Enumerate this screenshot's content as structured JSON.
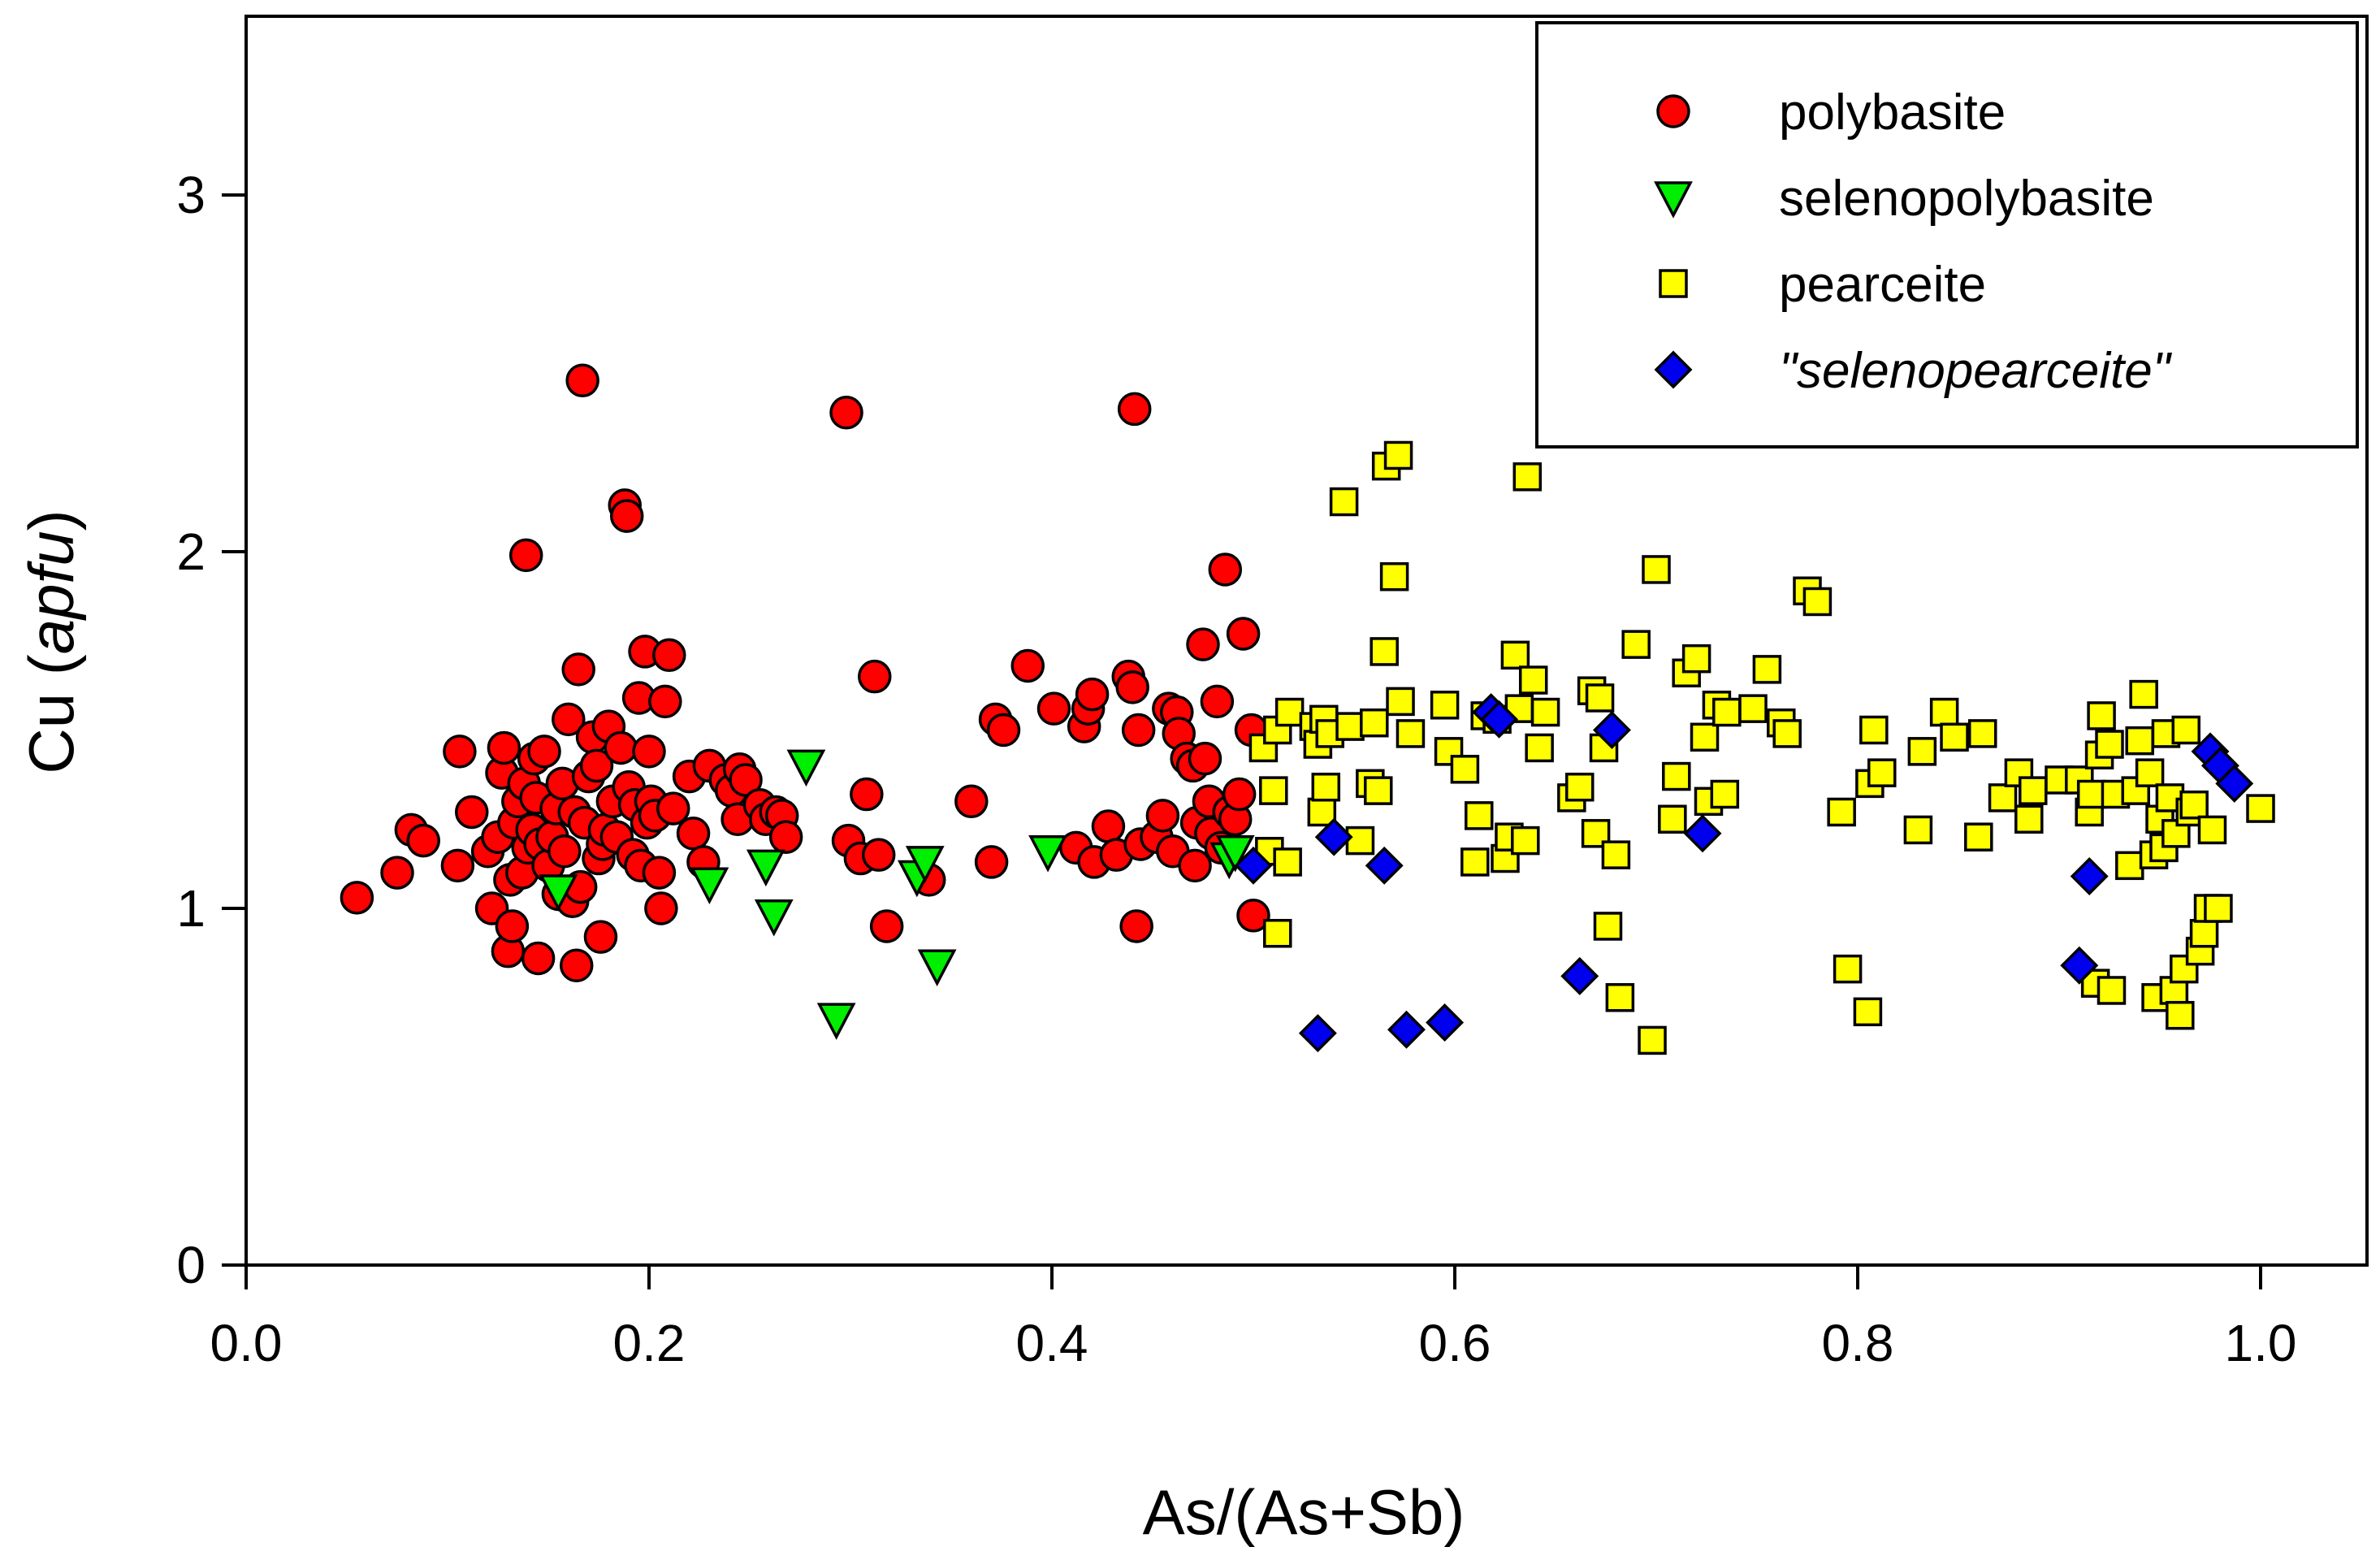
{
  "chart_data": {
    "type": "scatter",
    "title": "",
    "xlabel": "As/(As+Sb)",
    "ylabel_main": "Cu (",
    "ylabel_italic": "apfu",
    "ylabel_end": ")",
    "xlim": [
      0.0,
      1.05
    ],
    "ylim": [
      0,
      3.5
    ],
    "xticks": [
      0.0,
      0.2,
      0.4,
      0.6,
      0.8,
      1.0
    ],
    "xtick_labels": [
      "0.0",
      "0.2",
      "0.4",
      "0.6",
      "0.8",
      "1.0"
    ],
    "yticks": [
      0,
      1,
      2,
      3
    ],
    "ytick_labels": [
      "0",
      "1",
      "2",
      "3"
    ],
    "grid": false,
    "legend_position": "top-right",
    "series": [
      {
        "name": "polybasite",
        "marker": "circle",
        "color": "#ff0000",
        "italic": false,
        "points": [
          [
            0.055,
            1.03
          ],
          [
            0.075,
            1.1
          ],
          [
            0.082,
            1.22
          ],
          [
            0.088,
            1.19
          ],
          [
            0.105,
            1.12
          ],
          [
            0.106,
            1.44
          ],
          [
            0.112,
            1.27
          ],
          [
            0.12,
            1.16
          ],
          [
            0.122,
            1.0
          ],
          [
            0.125,
            1.2
          ],
          [
            0.127,
            1.38
          ],
          [
            0.128,
            1.45
          ],
          [
            0.13,
            0.88
          ],
          [
            0.131,
            1.08
          ],
          [
            0.132,
            0.95
          ],
          [
            0.133,
            1.24
          ],
          [
            0.135,
            1.3
          ],
          [
            0.137,
            1.1
          ],
          [
            0.138,
            1.35
          ],
          [
            0.139,
            1.99
          ],
          [
            0.14,
            1.17
          ],
          [
            0.142,
            1.22
          ],
          [
            0.143,
            1.42
          ],
          [
            0.144,
            1.31
          ],
          [
            0.145,
            0.86
          ],
          [
            0.146,
            1.18
          ],
          [
            0.148,
            1.44
          ],
          [
            0.15,
            1.12
          ],
          [
            0.152,
            1.2
          ],
          [
            0.154,
            1.28
          ],
          [
            0.155,
            1.04
          ],
          [
            0.157,
            1.35
          ],
          [
            0.158,
            1.16
          ],
          [
            0.16,
            1.53
          ],
          [
            0.162,
            1.02
          ],
          [
            0.163,
            1.27
          ],
          [
            0.164,
            0.84
          ],
          [
            0.165,
            1.67
          ],
          [
            0.166,
            1.06
          ],
          [
            0.167,
            2.48
          ],
          [
            0.168,
            1.24
          ],
          [
            0.17,
            1.37
          ],
          [
            0.172,
            1.48
          ],
          [
            0.174,
            1.4
          ],
          [
            0.175,
            1.14
          ],
          [
            0.176,
            0.92
          ],
          [
            0.177,
            1.18
          ],
          [
            0.178,
            1.22
          ],
          [
            0.18,
            1.51
          ],
          [
            0.182,
            1.3
          ],
          [
            0.184,
            1.2
          ],
          [
            0.186,
            1.45
          ],
          [
            0.188,
            2.13
          ],
          [
            0.189,
            2.1
          ],
          [
            0.19,
            1.34
          ],
          [
            0.192,
            1.15
          ],
          [
            0.193,
            1.29
          ],
          [
            0.195,
            1.59
          ],
          [
            0.196,
            1.12
          ],
          [
            0.198,
            1.72
          ],
          [
            0.199,
            1.24
          ],
          [
            0.2,
            1.44
          ],
          [
            0.201,
            1.3
          ],
          [
            0.203,
            1.26
          ],
          [
            0.205,
            1.1
          ],
          [
            0.206,
            1.0
          ],
          [
            0.208,
            1.58
          ],
          [
            0.21,
            1.71
          ],
          [
            0.212,
            1.28
          ],
          [
            0.22,
            1.37
          ],
          [
            0.222,
            1.21
          ],
          [
            0.227,
            1.13
          ],
          [
            0.23,
            1.4
          ],
          [
            0.238,
            1.36
          ],
          [
            0.241,
            1.33
          ],
          [
            0.244,
            1.25
          ],
          [
            0.245,
            1.39
          ],
          [
            0.248,
            1.36
          ],
          [
            0.255,
            1.29
          ],
          [
            0.258,
            1.25
          ],
          [
            0.263,
            1.27
          ],
          [
            0.266,
            1.26
          ],
          [
            0.268,
            1.2
          ],
          [
            0.298,
            2.39
          ],
          [
            0.299,
            1.19
          ],
          [
            0.305,
            1.14
          ],
          [
            0.308,
            1.32
          ],
          [
            0.312,
            1.65
          ],
          [
            0.314,
            1.15
          ],
          [
            0.318,
            0.95
          ],
          [
            0.339,
            1.08
          ],
          [
            0.36,
            1.3
          ],
          [
            0.37,
            1.13
          ],
          [
            0.372,
            1.53
          ],
          [
            0.376,
            1.5
          ],
          [
            0.388,
            1.68
          ],
          [
            0.401,
            1.56
          ],
          [
            0.412,
            1.17
          ],
          [
            0.416,
            1.51
          ],
          [
            0.418,
            1.56
          ],
          [
            0.42,
            1.6
          ],
          [
            0.421,
            1.13
          ],
          [
            0.428,
            1.23
          ],
          [
            0.432,
            1.15
          ],
          [
            0.438,
            1.65
          ],
          [
            0.44,
            1.62
          ],
          [
            0.441,
            2.4
          ],
          [
            0.442,
            0.95
          ],
          [
            0.443,
            1.5
          ],
          [
            0.444,
            1.18
          ],
          [
            0.452,
            1.2
          ],
          [
            0.455,
            1.26
          ],
          [
            0.458,
            1.56
          ],
          [
            0.46,
            1.16
          ],
          [
            0.462,
            1.55
          ],
          [
            0.463,
            1.49
          ],
          [
            0.467,
            1.42
          ],
          [
            0.47,
            1.4
          ],
          [
            0.471,
            1.12
          ],
          [
            0.472,
            1.24
          ],
          [
            0.475,
            1.74
          ],
          [
            0.476,
            1.42
          ],
          [
            0.478,
            1.3
          ],
          [
            0.479,
            1.21
          ],
          [
            0.482,
            1.58
          ],
          [
            0.484,
            1.17
          ],
          [
            0.486,
            1.95
          ],
          [
            0.488,
            1.27
          ],
          [
            0.491,
            1.25
          ],
          [
            0.493,
            1.32
          ],
          [
            0.495,
            1.77
          ],
          [
            0.499,
            1.5
          ],
          [
            0.5,
            0.98
          ]
        ]
      },
      {
        "name": "selenopolybasite",
        "marker": "triangle-down",
        "color": "#00ee00",
        "italic": false,
        "points": [
          [
            0.155,
            1.05
          ],
          [
            0.23,
            1.07
          ],
          [
            0.258,
            1.12
          ],
          [
            0.262,
            0.98
          ],
          [
            0.278,
            1.4
          ],
          [
            0.293,
            0.69
          ],
          [
            0.333,
            1.09
          ],
          [
            0.337,
            1.13
          ],
          [
            0.343,
            0.84
          ],
          [
            0.398,
            1.16
          ],
          [
            0.488,
            1.14
          ],
          [
            0.491,
            1.16
          ]
        ]
      },
      {
        "name": "pearceite",
        "marker": "square",
        "color": "#ffff00",
        "italic": false,
        "points": [
          [
            0.505,
            1.45
          ],
          [
            0.508,
            1.16
          ],
          [
            0.51,
            1.33
          ],
          [
            0.512,
            0.93
          ],
          [
            0.512,
            1.5
          ],
          [
            0.517,
            1.13
          ],
          [
            0.518,
            1.55
          ],
          [
            0.53,
            1.51
          ],
          [
            0.532,
            1.46
          ],
          [
            0.534,
            1.27
          ],
          [
            0.535,
            1.53
          ],
          [
            0.536,
            1.34
          ],
          [
            0.538,
            1.49
          ],
          [
            0.545,
            2.14
          ],
          [
            0.548,
            1.51
          ],
          [
            0.553,
            1.19
          ],
          [
            0.558,
            1.35
          ],
          [
            0.56,
            1.52
          ],
          [
            0.562,
            1.33
          ],
          [
            0.565,
            1.72
          ],
          [
            0.566,
            2.24
          ],
          [
            0.57,
            1.93
          ],
          [
            0.572,
            2.27
          ],
          [
            0.573,
            1.58
          ],
          [
            0.578,
            1.49
          ],
          [
            0.595,
            1.57
          ],
          [
            0.597,
            1.44
          ],
          [
            0.605,
            1.39
          ],
          [
            0.61,
            1.13
          ],
          [
            0.612,
            1.26
          ],
          [
            0.615,
            1.54
          ],
          [
            0.621,
            1.53
          ],
          [
            0.625,
            1.14
          ],
          [
            0.627,
            1.2
          ],
          [
            0.63,
            1.71
          ],
          [
            0.632,
            1.56
          ],
          [
            0.635,
            1.19
          ],
          [
            0.636,
            2.21
          ],
          [
            0.639,
            1.64
          ],
          [
            0.642,
            1.45
          ],
          [
            0.645,
            1.55
          ],
          [
            0.658,
            1.31
          ],
          [
            0.662,
            1.34
          ],
          [
            0.668,
            1.61
          ],
          [
            0.67,
            1.21
          ],
          [
            0.672,
            1.59
          ],
          [
            0.674,
            1.45
          ],
          [
            0.676,
            0.95
          ],
          [
            0.68,
            1.15
          ],
          [
            0.682,
            0.75
          ],
          [
            0.69,
            1.74
          ],
          [
            0.698,
            0.63
          ],
          [
            0.7,
            1.95
          ],
          [
            0.708,
            1.25
          ],
          [
            0.71,
            1.37
          ],
          [
            0.715,
            1.66
          ],
          [
            0.72,
            1.7
          ],
          [
            0.724,
            1.48
          ],
          [
            0.726,
            1.3
          ],
          [
            0.73,
            1.57
          ],
          [
            0.734,
            1.32
          ],
          [
            0.735,
            1.55
          ],
          [
            0.748,
            1.56
          ],
          [
            0.755,
            1.67
          ],
          [
            0.762,
            1.52
          ],
          [
            0.765,
            1.49
          ],
          [
            0.775,
            1.89
          ],
          [
            0.78,
            1.86
          ],
          [
            0.792,
            1.27
          ],
          [
            0.795,
            0.83
          ],
          [
            0.805,
            0.71
          ],
          [
            0.806,
            1.35
          ],
          [
            0.808,
            1.5
          ],
          [
            0.812,
            1.38
          ],
          [
            0.83,
            1.22
          ],
          [
            0.832,
            1.44
          ],
          [
            0.843,
            1.55
          ],
          [
            0.848,
            1.48
          ],
          [
            0.86,
            1.2
          ],
          [
            0.862,
            1.49
          ],
          [
            0.872,
            1.31
          ],
          [
            0.88,
            1.38
          ],
          [
            0.885,
            1.25
          ],
          [
            0.887,
            1.33
          ],
          [
            0.9,
            1.36
          ],
          [
            0.91,
            1.36
          ],
          [
            0.915,
            1.27
          ],
          [
            0.916,
            1.32
          ],
          [
            0.918,
            0.79
          ],
          [
            0.92,
            1.43
          ],
          [
            0.921,
            1.54
          ],
          [
            0.925,
            1.46
          ],
          [
            0.926,
            0.77
          ],
          [
            0.928,
            1.32
          ],
          [
            0.935,
            1.12
          ],
          [
            0.938,
            1.33
          ],
          [
            0.94,
            1.47
          ],
          [
            0.942,
            1.6
          ],
          [
            0.945,
            1.38
          ],
          [
            0.947,
            1.15
          ],
          [
            0.948,
            0.75
          ],
          [
            0.95,
            1.25
          ],
          [
            0.952,
            1.17
          ],
          [
            0.953,
            1.49
          ],
          [
            0.955,
            1.31
          ],
          [
            0.957,
            0.77
          ],
          [
            0.958,
            1.21
          ],
          [
            0.96,
            0.7
          ],
          [
            0.962,
            0.83
          ],
          [
            0.963,
            1.5
          ],
          [
            0.965,
            1.27
          ],
          [
            0.967,
            1.29
          ],
          [
            0.97,
            0.88
          ],
          [
            0.972,
            0.93
          ],
          [
            0.974,
            1.0
          ],
          [
            0.976,
            1.22
          ],
          [
            0.979,
            1.0
          ],
          [
            1.0,
            1.28
          ]
        ]
      },
      {
        "name": "\"selenopearceite\"",
        "marker": "diamond",
        "color": "#0000ee",
        "italic": true,
        "points": [
          [
            0.5,
            1.12
          ],
          [
            0.532,
            0.65
          ],
          [
            0.54,
            1.2
          ],
          [
            0.565,
            1.12
          ],
          [
            0.576,
            0.66
          ],
          [
            0.595,
            0.68
          ],
          [
            0.618,
            1.55
          ],
          [
            0.622,
            1.53
          ],
          [
            0.662,
            0.81
          ],
          [
            0.678,
            1.5
          ],
          [
            0.723,
            1.21
          ],
          [
            0.91,
            0.84
          ],
          [
            0.915,
            1.09
          ],
          [
            0.975,
            1.44
          ],
          [
            0.98,
            1.4
          ],
          [
            0.987,
            1.35
          ]
        ]
      }
    ]
  }
}
